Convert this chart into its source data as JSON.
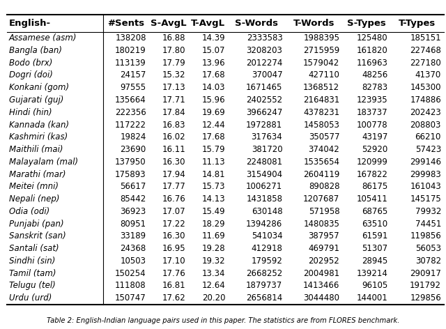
{
  "columns": [
    "English-",
    "#Sents",
    "S-AvgL",
    "T-AvgL",
    "S-Words",
    "T-Words",
    "S-Types",
    "T-Types"
  ],
  "rows": [
    [
      "Assamese (asm)",
      "138208",
      "16.88",
      "14.39",
      "2333583",
      "1988395",
      "125480",
      "185151"
    ],
    [
      "Bangla (ban)",
      "180219",
      "17.80",
      "15.07",
      "3208203",
      "2715959",
      "161820",
      "227468"
    ],
    [
      "Bodo (brx)",
      "113139",
      "17.79",
      "13.96",
      "2012274",
      "1579042",
      "116963",
      "227180"
    ],
    [
      "Dogri (doi)",
      "24157",
      "15.32",
      "17.68",
      "370047",
      "427110",
      "48256",
      "41370"
    ],
    [
      "Konkani (gom)",
      "97555",
      "17.13",
      "14.03",
      "1671465",
      "1368512",
      "82783",
      "145300"
    ],
    [
      "Gujarati (guj)",
      "135664",
      "17.71",
      "15.96",
      "2402552",
      "2164831",
      "123935",
      "174886"
    ],
    [
      "Hindi (hin)",
      "222356",
      "17.84",
      "19.69",
      "3966247",
      "4378231",
      "183737",
      "202423"
    ],
    [
      "Kannada (kan)",
      "117222",
      "16.83",
      "12.44",
      "1972881",
      "1458053",
      "100778",
      "208803"
    ],
    [
      "Kashmiri (kas)",
      "19824",
      "16.02",
      "17.68",
      "317634",
      "350577",
      "43197",
      "66210"
    ],
    [
      "Maithili (mai)",
      "23690",
      "16.11",
      "15.79",
      "381720",
      "374042",
      "52920",
      "57423"
    ],
    [
      "Malayalam (mal)",
      "137950",
      "16.30",
      "11.13",
      "2248081",
      "1535654",
      "120999",
      "299146"
    ],
    [
      "Marathi (mar)",
      "175893",
      "17.94",
      "14.81",
      "3154904",
      "2604119",
      "167822",
      "299983"
    ],
    [
      "Meitei (mni)",
      "56617",
      "17.77",
      "15.73",
      "1006271",
      "890828",
      "86175",
      "161043"
    ],
    [
      "Nepali (nep)",
      "85442",
      "16.76",
      "14.13",
      "1431858",
      "1207687",
      "105411",
      "145175"
    ],
    [
      "Odia (odi)",
      "36923",
      "17.07",
      "15.49",
      "630148",
      "571958",
      "68765",
      "79932"
    ],
    [
      "Punjabi (pan)",
      "80951",
      "17.22",
      "18.29",
      "1394286",
      "1480835",
      "63510",
      "74451"
    ],
    [
      "Sanskrit (san)",
      "33189",
      "16.30",
      "11.69",
      "541034",
      "387957",
      "61591",
      "119856"
    ],
    [
      "Santali (sat)",
      "24368",
      "16.95",
      "19.28",
      "412918",
      "469791",
      "51307",
      "56053"
    ],
    [
      "Sindhi (sin)",
      "10503",
      "17.10",
      "19.32",
      "179592",
      "202952",
      "28945",
      "30782"
    ],
    [
      "Tamil (tam)",
      "150254",
      "17.76",
      "13.34",
      "2668252",
      "2004981",
      "139214",
      "290917"
    ],
    [
      "Telugu (tel)",
      "111808",
      "16.81",
      "12.64",
      "1879737",
      "1413466",
      "96105",
      "191792"
    ],
    [
      "Urdu (urd)",
      "150747",
      "17.62",
      "20.20",
      "2656814",
      "3044480",
      "144001",
      "129856"
    ]
  ],
  "caption": "Table 2: English-Indian language pairs used in this paper. The statistics are from FLORES benchmark.",
  "background_color": "#ffffff",
  "font_size": 8.5,
  "header_font_size": 9.5
}
